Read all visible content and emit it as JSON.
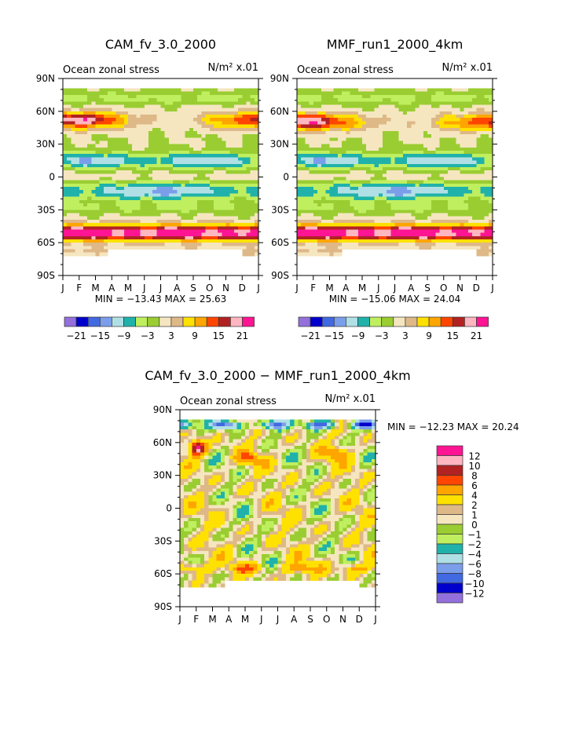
{
  "chart_data": [
    {
      "type": "heatmap",
      "title": "CAM_fv_3.0_2000",
      "subtitle": "Ocean zonal stress",
      "units": "N/m² x.01",
      "x_ticks": [
        "J",
        "F",
        "M",
        "A",
        "M",
        "J",
        "J",
        "A",
        "S",
        "O",
        "N",
        "D",
        "J"
      ],
      "y_ticks": [
        "90N",
        "60N",
        "30N",
        "0",
        "30S",
        "60S",
        "90S"
      ],
      "ylim": [
        -90,
        90
      ],
      "min_max_text": "MIN = −13.43  MAX =  25.63",
      "levels": [
        -21,
        -18,
        -15,
        -12,
        -9,
        -6,
        -3,
        0,
        3,
        6,
        9,
        12,
        15,
        18,
        21
      ],
      "level_labels": [
        "−21",
        "−15",
        "−9",
        "−3",
        "3",
        "9",
        "15",
        "21"
      ],
      "kind": "model"
    },
    {
      "type": "heatmap",
      "title": "MMF_run1_2000_4km",
      "subtitle": "Ocean zonal stress",
      "units": "N/m² x.01",
      "x_ticks": [
        "J",
        "F",
        "M",
        "A",
        "M",
        "J",
        "J",
        "A",
        "S",
        "O",
        "N",
        "D",
        "J"
      ],
      "y_ticks": [
        "90N",
        "60N",
        "30N",
        "0",
        "30S",
        "60S",
        "90S"
      ],
      "ylim": [
        -90,
        90
      ],
      "min_max_text": "MIN = −15.06  MAX =  24.04",
      "levels": [
        -21,
        -18,
        -15,
        -12,
        -9,
        -6,
        -3,
        0,
        3,
        6,
        9,
        12,
        15,
        18,
        21
      ],
      "level_labels": [
        "−21",
        "−15",
        "−9",
        "−3",
        "3",
        "9",
        "15",
        "21"
      ],
      "kind": "model2"
    },
    {
      "type": "heatmap",
      "title": "CAM_fv_3.0_2000 − MMF_run1_2000_4km",
      "subtitle": "Ocean zonal stress",
      "units": "N/m² x.01",
      "x_ticks": [
        "J",
        "F",
        "M",
        "A",
        "M",
        "J",
        "J",
        "A",
        "S",
        "O",
        "N",
        "D",
        "J"
      ],
      "y_ticks": [
        "90N",
        "60N",
        "30N",
        "0",
        "30S",
        "60S",
        "90S"
      ],
      "ylim": [
        -90,
        90
      ],
      "min_max_text": "MIN = −12.23  MAX =  20.24",
      "levels": [
        -12,
        -10,
        -8,
        -6,
        -4,
        -2,
        -1,
        0,
        1,
        2,
        4,
        6,
        8,
        10,
        12
      ],
      "level_labels": [
        "12",
        "10",
        "8",
        "6",
        "4",
        "2",
        "1",
        "0",
        "−1",
        "−2",
        "−4",
        "−6",
        "−8",
        "−10",
        "−12"
      ],
      "kind": "diff"
    }
  ],
  "palette": [
    "#9370DB",
    "#0000CD",
    "#4169E1",
    "#7B9EEB",
    "#B0E0E6",
    "#20B2AA",
    "#BFEF5F",
    "#9ACD32",
    "#F5E6C0",
    "#DEB887",
    "#FFE100",
    "#FFA500",
    "#FF4500",
    "#B22222",
    "#FFB6C1",
    "#FF1493"
  ]
}
